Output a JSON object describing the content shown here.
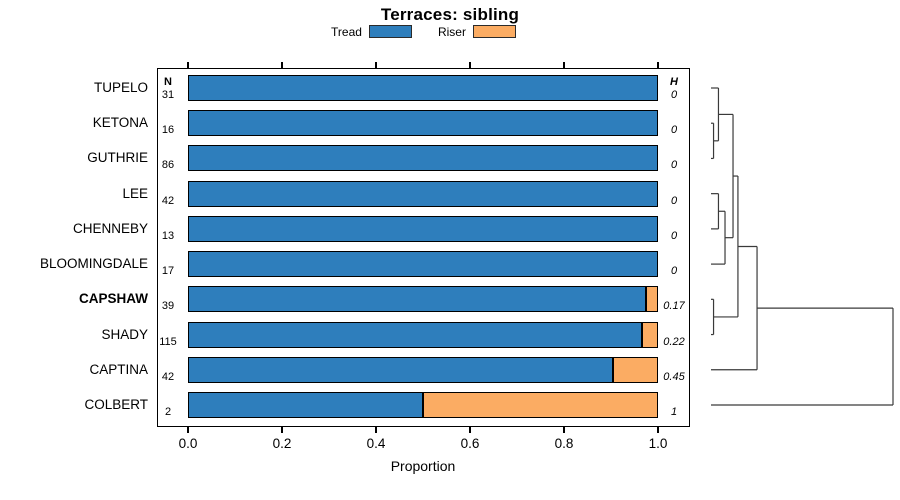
{
  "chart_data": {
    "type": "bar",
    "orientation": "horizontal",
    "stacked": true,
    "title": "Terraces: sibling",
    "xlabel": "Proportion",
    "xlim": [
      0,
      1
    ],
    "grid": false,
    "legend_position": "top-center",
    "legend": [
      {
        "name": "Tread",
        "color": "#2E7EBC"
      },
      {
        "name": "Riser",
        "color": "#FBAC63"
      }
    ],
    "columns": {
      "n_header": "N",
      "h_header": "H"
    },
    "x_ticks": [
      {
        "label": "0.0",
        "value": 0.0
      },
      {
        "label": "0.2",
        "value": 0.2
      },
      {
        "label": "0.4",
        "value": 0.4
      },
      {
        "label": "0.6",
        "value": 0.6
      },
      {
        "label": "0.8",
        "value": 0.8
      },
      {
        "label": "1.0",
        "value": 1.0
      }
    ],
    "rows": [
      {
        "label": "TUPELO",
        "n": "31",
        "tread": 1.0,
        "riser": 0.0,
        "h": "0",
        "bold": false
      },
      {
        "label": "KETONA",
        "n": "16",
        "tread": 1.0,
        "riser": 0.0,
        "h": "0",
        "bold": false
      },
      {
        "label": "GUTHRIE",
        "n": "86",
        "tread": 1.0,
        "riser": 0.0,
        "h": "0",
        "bold": false
      },
      {
        "label": "LEE",
        "n": "42",
        "tread": 1.0,
        "riser": 0.0,
        "h": "0",
        "bold": false
      },
      {
        "label": "CHENNEBY",
        "n": "13",
        "tread": 1.0,
        "riser": 0.0,
        "h": "0",
        "bold": false
      },
      {
        "label": "BLOOMINGDALE",
        "n": "17",
        "tread": 1.0,
        "riser": 0.0,
        "h": "0",
        "bold": false
      },
      {
        "label": "CAPSHAW",
        "n": "39",
        "tread": 0.974,
        "riser": 0.026,
        "h": "0.17",
        "bold": true
      },
      {
        "label": "SHADY",
        "n": "115",
        "tread": 0.965,
        "riser": 0.035,
        "h": "0.22",
        "bold": false
      },
      {
        "label": "CAPTINA",
        "n": "42",
        "tread": 0.905,
        "riser": 0.095,
        "h": "0.45",
        "bold": false
      },
      {
        "label": "COLBERT",
        "n": "2",
        "tread": 0.5,
        "riser": 0.5,
        "h": "1",
        "bold": false
      }
    ],
    "dendrogram": {
      "merges": [
        {
          "id": "m1",
          "h": 0.014,
          "children": [
            "leaf-1",
            "leaf-2"
          ]
        },
        {
          "id": "m2",
          "h": 0.041,
          "children": [
            "leaf-0",
            "m1"
          ]
        },
        {
          "id": "m3",
          "h": 0.041,
          "children": [
            "leaf-3",
            "leaf-4"
          ]
        },
        {
          "id": "m4",
          "h": 0.077,
          "children": [
            "m3",
            "leaf-5"
          ]
        },
        {
          "id": "m5",
          "h": 0.121,
          "children": [
            "m2",
            "m4"
          ]
        },
        {
          "id": "m6",
          "h": 0.014,
          "children": [
            "leaf-6",
            "leaf-7"
          ]
        },
        {
          "id": "m7",
          "h": 0.148,
          "children": [
            "m5",
            "m6"
          ]
        },
        {
          "id": "m8",
          "h": 0.253,
          "children": [
            "m7",
            "leaf-8"
          ]
        },
        {
          "id": "m9",
          "h": 1.0,
          "children": [
            "m8",
            "leaf-9"
          ]
        }
      ]
    }
  }
}
